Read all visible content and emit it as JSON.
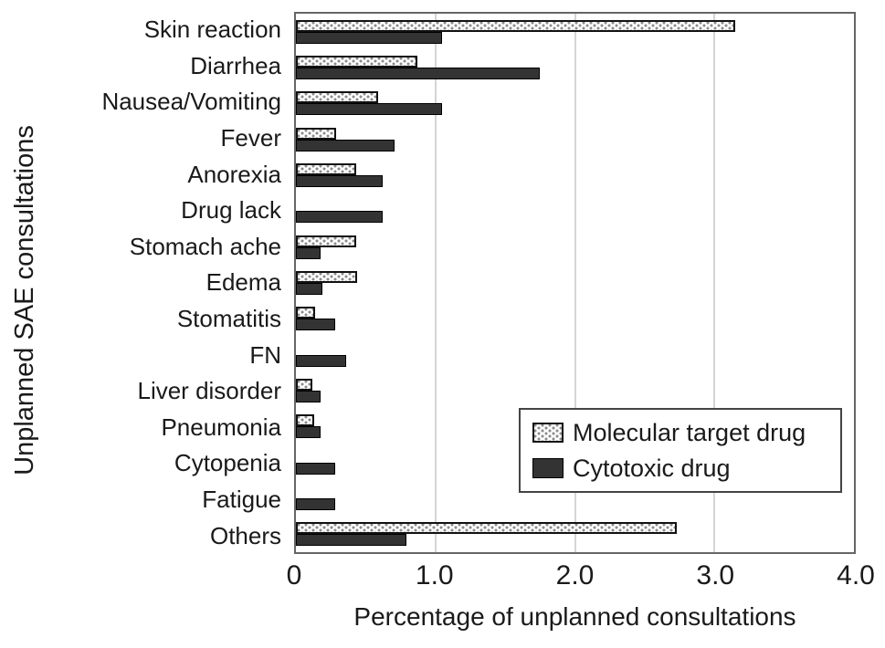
{
  "chart_data": {
    "type": "bar",
    "orientation": "horizontal",
    "title": "",
    "xlabel": "Percentage of unplanned consultations",
    "ylabel": "Unplanned SAE consultations",
    "xlim": [
      0,
      4.0
    ],
    "xticks": [
      0,
      1.0,
      2.0,
      3.0,
      4.0
    ],
    "xtick_labels": [
      "0",
      "1.0",
      "2.0",
      "3.0",
      "4.0"
    ],
    "grid": "vertical gridlines at 1.0, 2.0, 3.0",
    "legend_position": "inside middle-right",
    "categories": [
      "Skin reaction",
      "Diarrhea",
      "Nausea/Vomiting",
      "Fever",
      "Anorexia",
      "Drug lack",
      "Stomach ache",
      "Edema",
      "Stomatitis",
      "FN",
      "Liver disorder",
      "Pneumonia",
      "Cytopenia",
      "Fatigue",
      "Others"
    ],
    "series": [
      {
        "name": "Molecular target drug",
        "swatch": "white-dotted-pattern",
        "values": [
          3.15,
          0.87,
          0.59,
          0.29,
          0.43,
          0,
          0.43,
          0.44,
          0.14,
          0,
          0.12,
          0.13,
          0,
          0,
          2.73
        ]
      },
      {
        "name": "Cytotoxic drug",
        "swatch": "dark-solid",
        "color": "#333333",
        "values": [
          1.05,
          1.75,
          1.05,
          0.71,
          0.62,
          0.62,
          0.18,
          0.19,
          0.28,
          0.36,
          0.18,
          0.18,
          0.28,
          0.28,
          0.79
        ]
      }
    ]
  },
  "colors": {
    "cytotoxic_bar": "#333333",
    "bar_border": "#111111",
    "dotted_bar_background": "#ffffff",
    "dot_color": "#8c8c8c",
    "gridline": "#d4d4d4",
    "plot_border": "#666666",
    "text": "#1a1a1a"
  }
}
